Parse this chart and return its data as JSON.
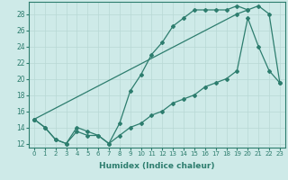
{
  "xlabel": "Humidex (Indice chaleur)",
  "ylabel": "",
  "line_color": "#2d7d6e",
  "bg_color": "#ceeae8",
  "grid_color": "#b8d8d5",
  "xlim": [
    -0.5,
    23.5
  ],
  "ylim": [
    11.5,
    29.5
  ],
  "yticks": [
    12,
    14,
    16,
    18,
    20,
    22,
    24,
    26,
    28
  ],
  "xticks": [
    0,
    1,
    2,
    3,
    4,
    5,
    6,
    7,
    8,
    9,
    10,
    11,
    12,
    13,
    14,
    15,
    16,
    17,
    18,
    19,
    20,
    21,
    22,
    23
  ],
  "line1_x": [
    0,
    1,
    2,
    3,
    4,
    5,
    6,
    7,
    8,
    9,
    10,
    11,
    12,
    13,
    14,
    15,
    16,
    17,
    18,
    19,
    20
  ],
  "line1_y": [
    15,
    14,
    12.5,
    12,
    14,
    13.5,
    13,
    12,
    14.5,
    18.5,
    20.5,
    23,
    24.5,
    26.5,
    27.5,
    28.5,
    28.5,
    28.5,
    28.5,
    29,
    28.5
  ],
  "line2_x": [
    0,
    1,
    2,
    3,
    4,
    5,
    6,
    7,
    8,
    9,
    10,
    11,
    12,
    13,
    14,
    15,
    16,
    17,
    18,
    19,
    20,
    21,
    22,
    23
  ],
  "line2_y": [
    15,
    14,
    12.5,
    12,
    13.5,
    13,
    13,
    12,
    13,
    14,
    14.5,
    15.5,
    16,
    17,
    17.5,
    18,
    19,
    19.5,
    20,
    21,
    27.5,
    24,
    21,
    19.5
  ],
  "line3_x": [
    0,
    19,
    20,
    21,
    22,
    23
  ],
  "line3_y": [
    15,
    28,
    28.5,
    29,
    28,
    19.5
  ]
}
